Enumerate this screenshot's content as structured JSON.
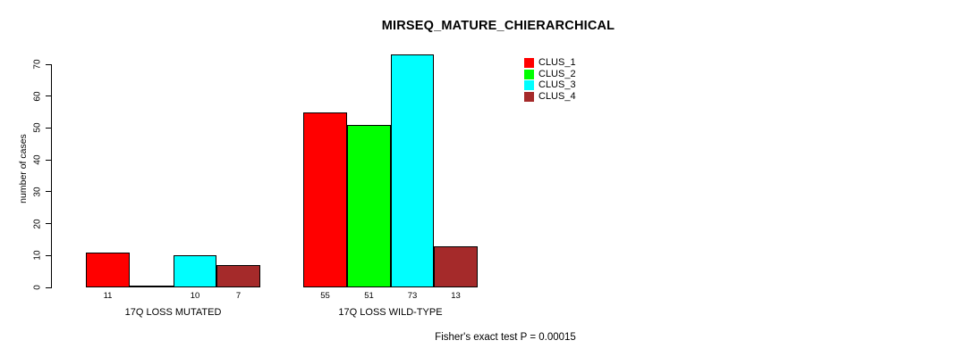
{
  "title": "MIRSEQ_MATURE_CHIERARCHICAL",
  "footnote": "Fisher's exact test P = 0.00015",
  "chart_data": {
    "type": "bar",
    "title": "MIRSEQ_MATURE_CHIERARCHICAL",
    "xlabel": "",
    "ylabel": "number of cases",
    "groups": [
      "17Q LOSS MUTATED",
      "17Q LOSS WILD-TYPE"
    ],
    "series": [
      {
        "name": "CLUS_1",
        "color": "#FF0000",
        "values": [
          11,
          55
        ]
      },
      {
        "name": "CLUS_2",
        "color": "#00FF00",
        "values": [
          0,
          51
        ]
      },
      {
        "name": "CLUS_3",
        "color": "#00FFFF",
        "values": [
          10,
          73
        ]
      },
      {
        "name": "CLUS_4",
        "color": "#A52A2A",
        "values": [
          7,
          13
        ]
      }
    ],
    "bar_value_labels": [
      [
        "11",
        "",
        "10",
        "7"
      ],
      [
        "55",
        "51",
        "73",
        "13"
      ]
    ],
    "yticks": [
      0,
      10,
      20,
      30,
      40,
      50,
      60,
      70
    ],
    "ylim": [
      0,
      75
    ],
    "grid": false,
    "bar_border_color": "#000000",
    "legend_position": "top-right",
    "annotation": "Fisher's exact test P = 0.00015"
  }
}
